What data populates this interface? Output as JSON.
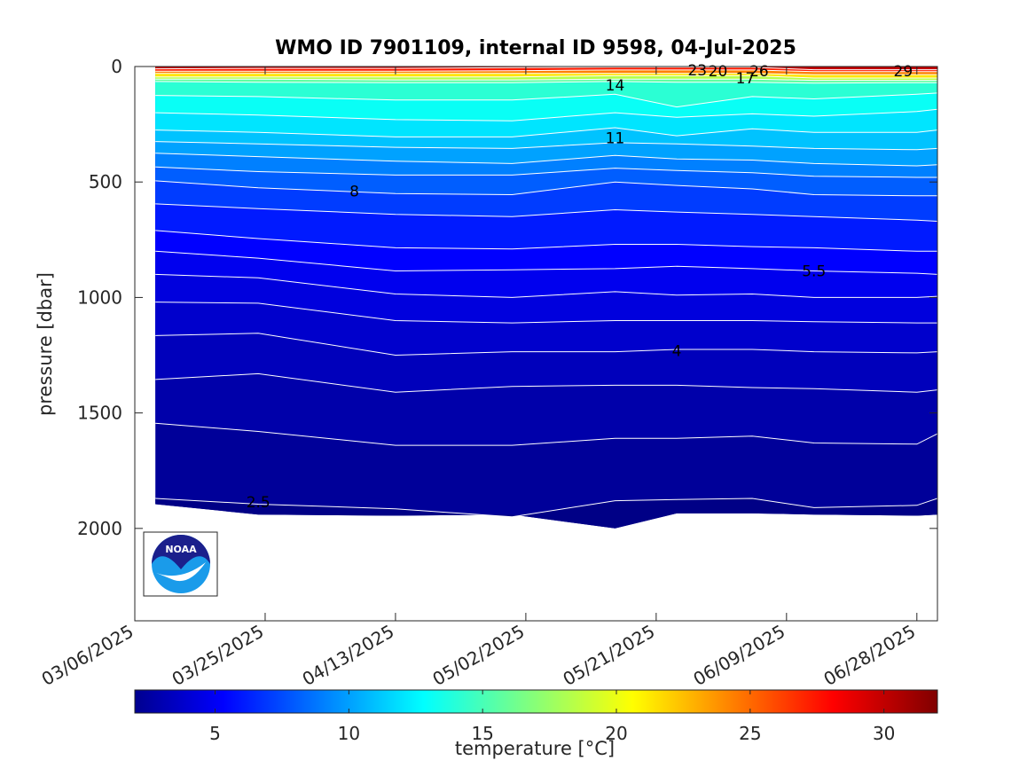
{
  "chart_data": {
    "type": "contour",
    "title": "WMO ID 7901109, internal ID 9598, 04-Jul-2025",
    "ylabel": "pressure [dbar]",
    "y_axis": {
      "reversed": true,
      "range": [
        0,
        2400
      ],
      "ticks": [
        0,
        500,
        1000,
        1500,
        2000
      ]
    },
    "x_axis": {
      "type": "date",
      "range": [
        "03/06/2025",
        "07/01/2025"
      ],
      "tick_labels": [
        "03/06/2025",
        "03/25/2025",
        "04/13/2025",
        "05/02/2025",
        "05/21/2025",
        "06/09/2025",
        "06/28/2025"
      ]
    },
    "profile_dates": [
      "03/09/2025",
      "03/24/2025",
      "04/13/2025",
      "04/30/2025",
      "05/15/2025",
      "05/24/2025",
      "06/04/2025",
      "06/13/2025",
      "06/28/2025",
      "07/01/2025"
    ],
    "profile_max_pressure": [
      1895,
      1940,
      1945,
      1940,
      2000,
      1935,
      1935,
      1940,
      1945,
      1940
    ],
    "isotherms": [
      {
        "level": 2.5,
        "depths": [
          1870,
          1895,
          1915,
          1950,
          1880,
          1875,
          1870,
          1910,
          1900,
          1870
        ]
      },
      {
        "level": 3.0,
        "depths": [
          1545,
          1580,
          1640,
          1640,
          1610,
          1610,
          1600,
          1630,
          1635,
          1590
        ]
      },
      {
        "level": 3.5,
        "depths": [
          1355,
          1330,
          1410,
          1385,
          1380,
          1380,
          1390,
          1395,
          1410,
          1400
        ]
      },
      {
        "level": 4.0,
        "depths": [
          1165,
          1155,
          1250,
          1235,
          1235,
          1225,
          1225,
          1235,
          1240,
          1235
        ]
      },
      {
        "level": 4.5,
        "depths": [
          1020,
          1025,
          1100,
          1110,
          1100,
          1100,
          1100,
          1105,
          1110,
          1110
        ]
      },
      {
        "level": 5.0,
        "depths": [
          900,
          915,
          985,
          1000,
          975,
          990,
          985,
          1000,
          1000,
          995
        ]
      },
      {
        "level": 5.5,
        "depths": [
          800,
          830,
          885,
          880,
          875,
          865,
          875,
          885,
          895,
          900
        ]
      },
      {
        "level": 6.0,
        "depths": [
          710,
          745,
          785,
          790,
          770,
          770,
          780,
          785,
          800,
          800
        ]
      },
      {
        "level": 7.0,
        "depths": [
          595,
          615,
          640,
          650,
          620,
          630,
          640,
          650,
          665,
          670
        ]
      },
      {
        "level": 8.0,
        "depths": [
          495,
          525,
          550,
          555,
          500,
          515,
          530,
          555,
          560,
          560
        ]
      },
      {
        "level": 9.0,
        "depths": [
          435,
          455,
          470,
          470,
          440,
          450,
          460,
          475,
          480,
          480
        ]
      },
      {
        "level": 10.0,
        "depths": [
          375,
          390,
          410,
          420,
          385,
          400,
          405,
          420,
          430,
          425
        ]
      },
      {
        "level": 11.0,
        "depths": [
          325,
          335,
          350,
          355,
          330,
          335,
          345,
          355,
          360,
          355
        ]
      },
      {
        "level": 12.0,
        "depths": [
          275,
          285,
          305,
          305,
          265,
          300,
          270,
          285,
          285,
          275
        ]
      },
      {
        "level": 13.0,
        "depths": [
          200,
          210,
          230,
          235,
          200,
          220,
          205,
          215,
          195,
          185
        ]
      },
      {
        "level": 14.0,
        "depths": [
          125,
          130,
          145,
          145,
          120,
          175,
          130,
          140,
          120,
          115
        ]
      },
      {
        "level": 15.0,
        "depths": [
          65,
          68,
          70,
          70,
          65,
          68,
          68,
          72,
          70,
          70
        ]
      },
      {
        "level": 17.0,
        "depths": [
          55,
          55,
          58,
          58,
          55,
          55,
          55,
          60,
          60,
          60
        ]
      },
      {
        "level": 20.0,
        "depths": [
          45,
          45,
          45,
          45,
          40,
          40,
          40,
          50,
          50,
          50
        ]
      },
      {
        "level": 23.0,
        "depths": [
          30,
          30,
          30,
          30,
          30,
          30,
          30,
          35,
          35,
          35
        ]
      },
      {
        "level": 26.0,
        "depths": [
          20,
          20,
          20,
          18,
          15,
          15,
          15,
          22,
          22,
          22
        ]
      },
      {
        "level": 29.0,
        "depths": [
          10,
          8,
          8,
          5,
          3,
          3,
          3,
          14,
          14,
          14
        ]
      }
    ],
    "contour_labels": [
      {
        "text": "14",
        "date": "05/15/2025",
        "pressure": 80
      },
      {
        "text": "23",
        "date": "05/27/2025",
        "pressure": 15
      },
      {
        "text": "20",
        "date": "05/30/2025",
        "pressure": 20
      },
      {
        "text": "17",
        "date": "06/03/2025",
        "pressure": 50
      },
      {
        "text": "26",
        "date": "06/05/2025",
        "pressure": 20
      },
      {
        "text": "29",
        "date": "06/26/2025",
        "pressure": 20
      },
      {
        "text": "11",
        "date": "05/15/2025",
        "pressure": 310
      },
      {
        "text": "8",
        "date": "04/07/2025",
        "pressure": 540
      },
      {
        "text": "5.5",
        "date": "06/13/2025",
        "pressure": 885
      },
      {
        "text": "4",
        "date": "05/24/2025",
        "pressure": 1230
      },
      {
        "text": "2.5",
        "date": "03/24/2025",
        "pressure": 1885
      }
    ],
    "colorbar": {
      "label": "temperature [°C]",
      "range": [
        2,
        32
      ],
      "ticks": [
        5,
        10,
        15,
        20,
        25,
        30
      ],
      "colormap": "jet"
    },
    "colors": {
      "isoline": "#ffffff",
      "axis": "#262626",
      "title": "#000000"
    }
  },
  "logo": {
    "text": "NOAA"
  }
}
